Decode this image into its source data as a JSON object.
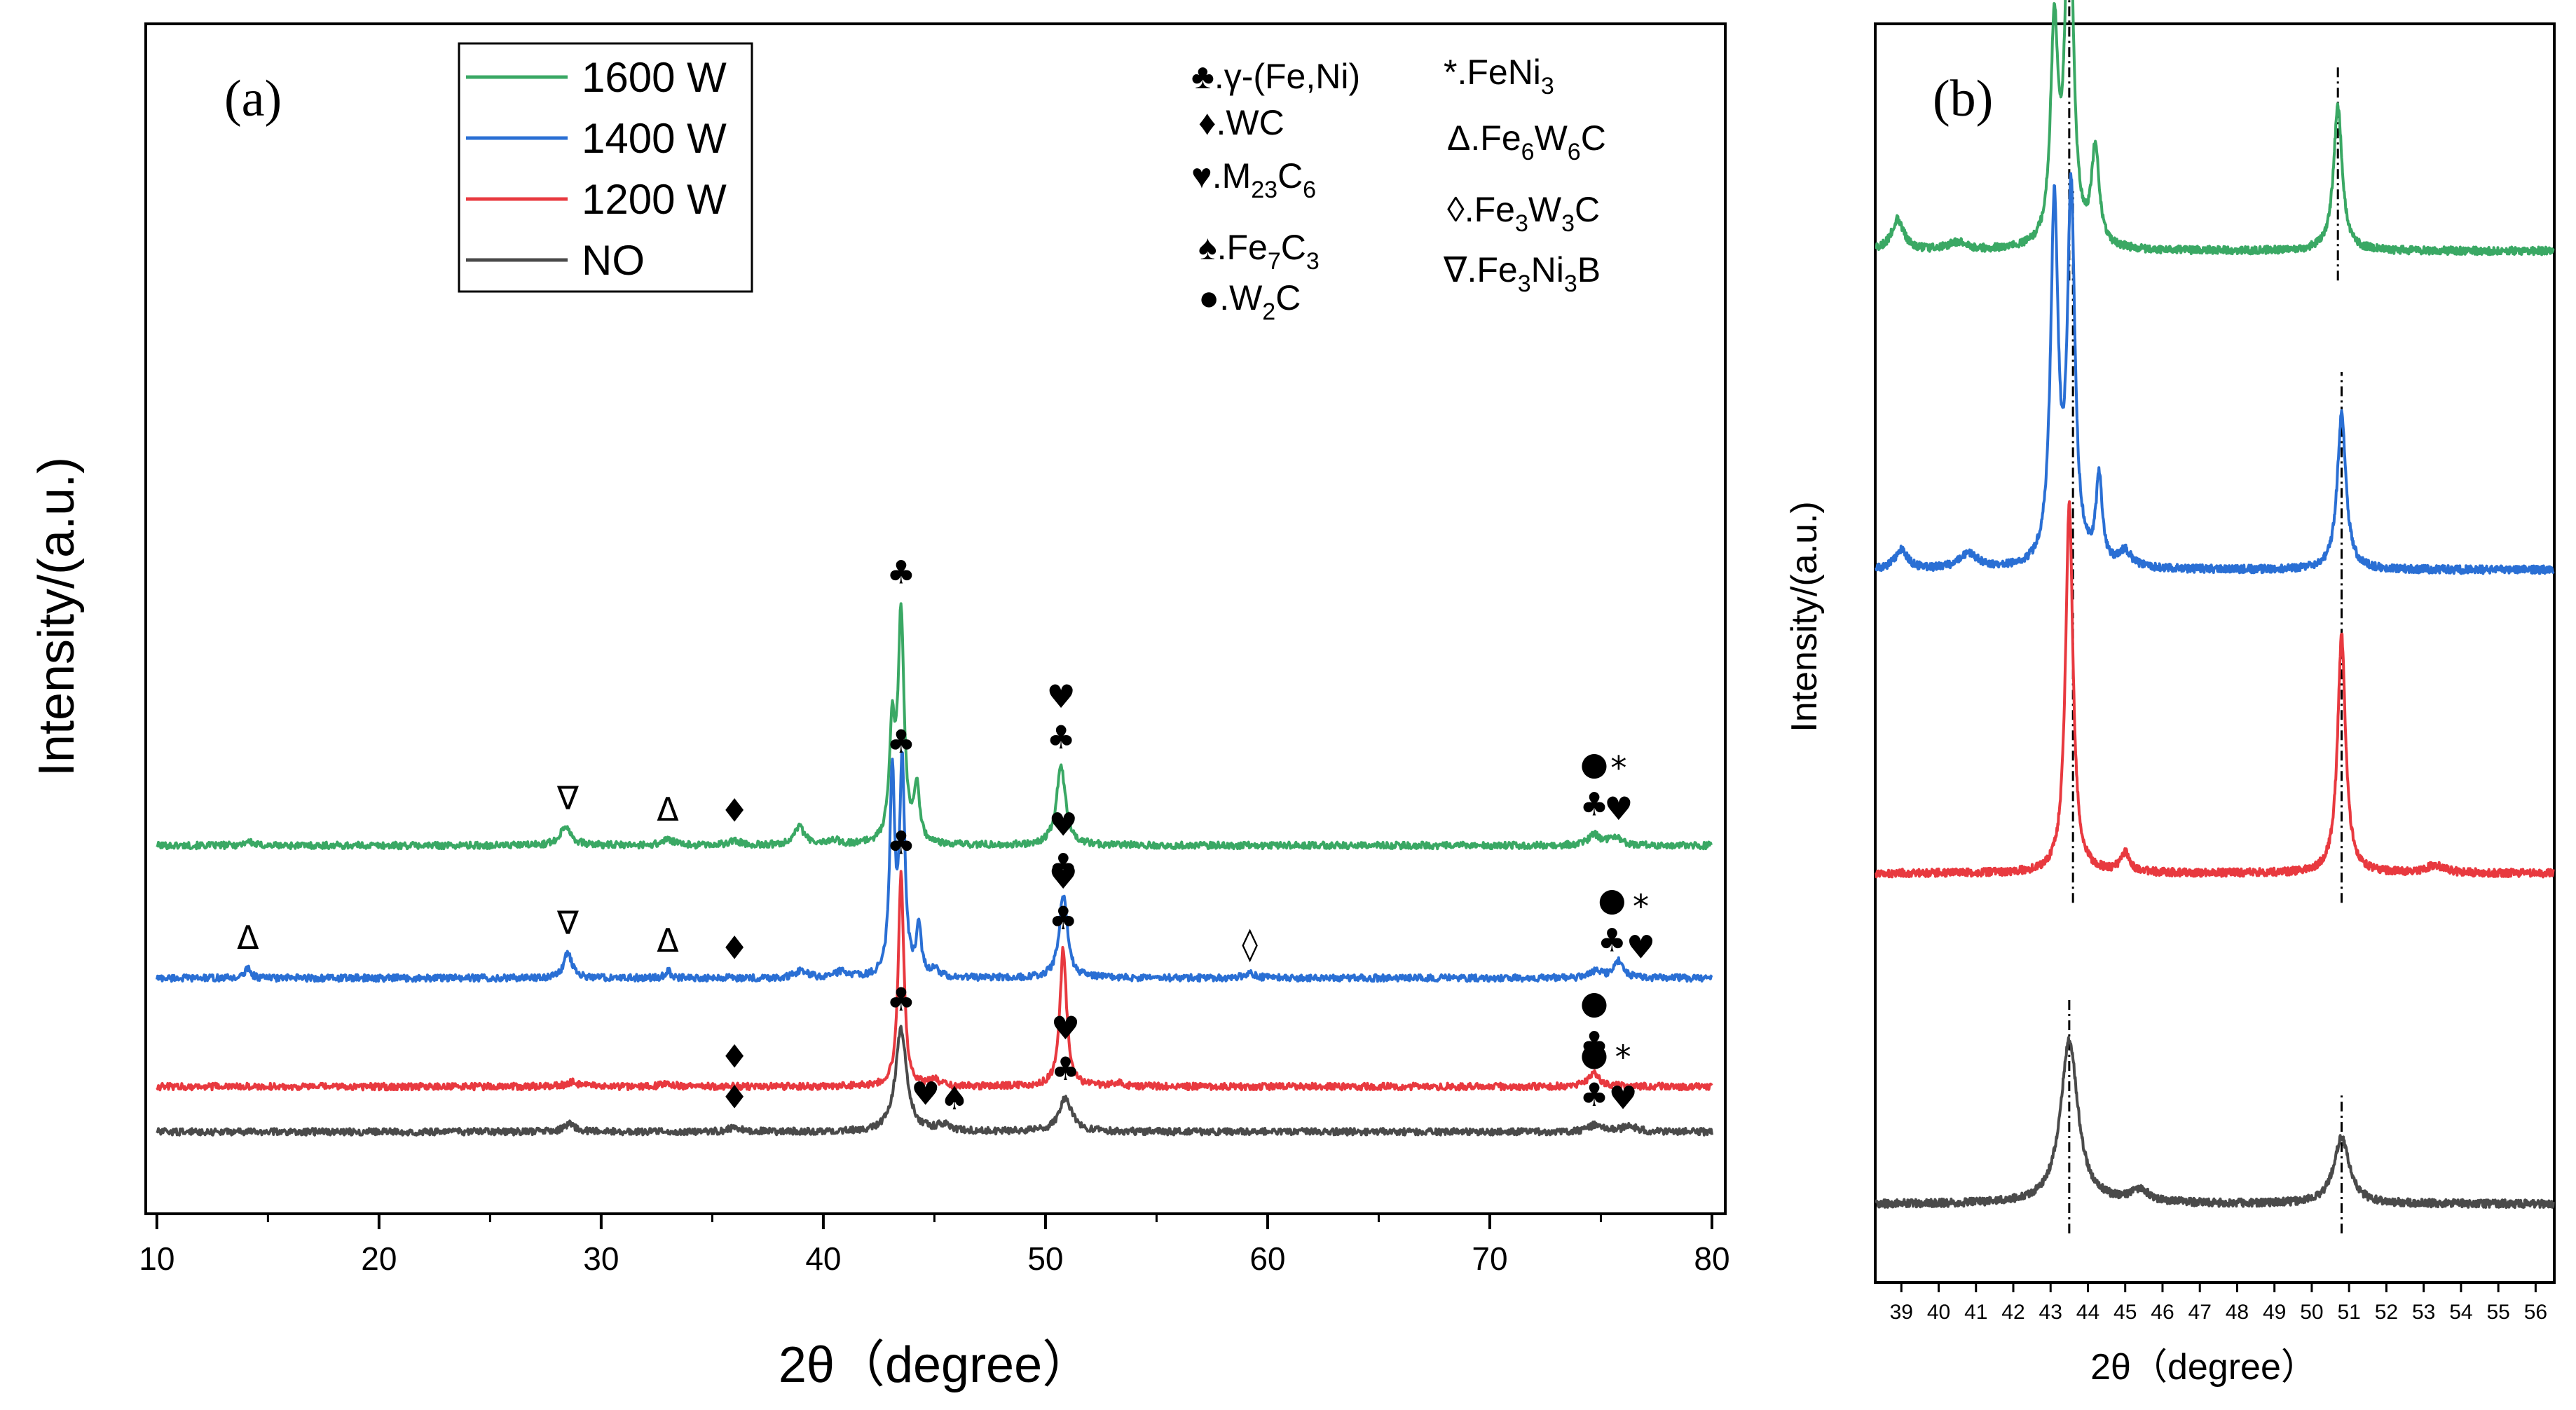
{
  "chart_data": [
    {
      "panel": "(a)",
      "type": "line",
      "xlabel": "2θ（degree）",
      "ylabel": "Intensity/(a.u.)",
      "xlim": [
        9.5,
        80.6
      ],
      "xticks": [
        10,
        20,
        30,
        40,
        50,
        60,
        70,
        80
      ],
      "legend": {
        "placement": "top-left",
        "entries": [
          {
            "label": "1600 W",
            "color": "#3aa864"
          },
          {
            "label": "1400 W",
            "color": "#2a6fd4"
          },
          {
            "label": "1200 W",
            "color": "#e8393f"
          },
          {
            "label": "NO",
            "color": "#4a4a4a"
          }
        ]
      },
      "phase_legend": [
        {
          "symbol": "♣",
          "prefix": ".γ-(Fe,Ni)",
          "parts": []
        },
        {
          "symbol": "♦",
          "prefix": ".WC",
          "parts": []
        },
        {
          "symbol": "♥",
          "prefix": ".M",
          "parts": [
            [
              "23",
              "C"
            ],
            [
              "6",
              ""
            ]
          ]
        },
        {
          "symbol": "♠",
          "prefix": ".Fe",
          "parts": [
            [
              "7",
              "C"
            ],
            [
              "3",
              ""
            ]
          ]
        },
        {
          "symbol": "●",
          "prefix": ".W",
          "parts": [
            [
              "2",
              "C"
            ]
          ]
        },
        {
          "symbol": "*",
          "prefix": ".FeNi",
          "parts": [
            [
              "3",
              ""
            ]
          ]
        },
        {
          "symbol": "Δ",
          "prefix": ".Fe",
          "parts": [
            [
              "6",
              "W"
            ],
            [
              "6",
              "C"
            ]
          ]
        },
        {
          "symbol": "◊",
          "prefix": ".Fe",
          "parts": [
            [
              "3",
              "W"
            ],
            [
              "3",
              "C"
            ]
          ]
        },
        {
          "symbol": "∇",
          "prefix": ".Fe",
          "parts": [
            [
              "3",
              "Ni"
            ],
            [
              "3",
              "B"
            ]
          ]
        }
      ],
      "series": [
        {
          "name": "1600 W",
          "color": "#3aa864",
          "baseline": 1.9,
          "peaks": [
            [
              14.1,
              0.03,
              0.2
            ],
            [
              28.4,
              0.13,
              0.3
            ],
            [
              33.0,
              0.04,
              0.3
            ],
            [
              36.0,
              0.03,
              0.3
            ],
            [
              38.9,
              0.12,
              0.3
            ],
            [
              40.5,
              0.03,
              0.3
            ],
            [
              43.1,
              0.72,
              0.16
            ],
            [
              43.5,
              1.5,
              0.16
            ],
            [
              44.2,
              0.36,
              0.15
            ],
            [
              50.7,
              0.52,
              0.25
            ],
            [
              74.7,
              0.07,
              0.3
            ],
            [
              75.6,
              0.06,
              0.3
            ]
          ]
        },
        {
          "name": "1400 W",
          "color": "#2a6fd4",
          "baseline": 1.02,
          "peaks": [
            [
              14.1,
              0.07,
              0.15
            ],
            [
              28.5,
              0.17,
              0.22
            ],
            [
              33.0,
              0.05,
              0.15
            ],
            [
              39.0,
              0.05,
              0.3
            ],
            [
              40.8,
              0.04,
              0.3
            ],
            [
              43.1,
              1.35,
              0.13
            ],
            [
              43.55,
              1.39,
              0.14
            ],
            [
              44.3,
              0.32,
              0.13
            ],
            [
              45.0,
              0.05,
              0.2
            ],
            [
              50.8,
              0.55,
              0.22
            ],
            [
              59.2,
              0.03,
              0.3
            ],
            [
              74.8,
              0.05,
              0.3
            ],
            [
              75.8,
              0.11,
              0.25
            ]
          ]
        },
        {
          "name": "1200 W",
          "color": "#e8393f",
          "baseline": 0.3,
          "peaks": [
            [
              28.7,
              0.03,
              0.3
            ],
            [
              33.0,
              0.02,
              0.3
            ],
            [
              43.5,
              1.42,
              0.15
            ],
            [
              45.0,
              0.05,
              0.2
            ],
            [
              50.8,
              0.92,
              0.18
            ],
            [
              53.3,
              0.02,
              0.3
            ],
            [
              74.7,
              0.09,
              0.3
            ]
          ]
        },
        {
          "name": "NO",
          "color": "#4a4a4a",
          "baseline": 0.0,
          "peaks": [
            [
              28.6,
              0.05,
              0.3
            ],
            [
              36.0,
              0.03,
              0.3
            ],
            [
              43.5,
              0.68,
              0.3
            ],
            [
              45.4,
              0.04,
              0.35
            ],
            [
              50.9,
              0.22,
              0.35
            ],
            [
              74.8,
              0.05,
              0.35
            ],
            [
              76.3,
              0.04,
              0.35
            ]
          ]
        }
      ],
      "annotations": [
        {
          "series": "1600 W",
          "x": 28.5,
          "symbols": [
            "∇"
          ]
        },
        {
          "series": "1600 W",
          "x": 33.0,
          "symbols": [
            "Δ"
          ]
        },
        {
          "series": "1600 W",
          "x": 36.0,
          "symbols": [
            "♦"
          ]
        },
        {
          "series": "1600 W",
          "x": 43.5,
          "symbols": [
            "♣"
          ]
        },
        {
          "series": "1600 W",
          "x": 50.7,
          "symbols": [
            "♣",
            "♥"
          ]
        },
        {
          "series": "1600 W",
          "x": 74.7,
          "symbols": [
            "♣",
            "●"
          ]
        },
        {
          "series": "1600 W",
          "x": 75.8,
          "symbols": [
            "♥",
            "*"
          ]
        },
        {
          "series": "1400 W",
          "x": 14.1,
          "symbols": [
            "Δ"
          ]
        },
        {
          "series": "1400 W",
          "x": 28.5,
          "symbols": [
            "∇"
          ]
        },
        {
          "series": "1400 W",
          "x": 33.0,
          "symbols": [
            "Δ"
          ]
        },
        {
          "series": "1400 W",
          "x": 36.0,
          "symbols": [
            "♦"
          ]
        },
        {
          "series": "1400 W",
          "x": 43.5,
          "symbols": [
            "♣"
          ]
        },
        {
          "series": "1400 W",
          "x": 50.8,
          "symbols": [
            "♣",
            "♥"
          ]
        },
        {
          "series": "1400 W",
          "x": 59.2,
          "symbols": [
            "◊"
          ]
        },
        {
          "series": "1400 W",
          "x": 75.5,
          "symbols": [
            "♣",
            "●"
          ]
        },
        {
          "series": "1400 W",
          "x": 76.8,
          "symbols": [
            "♥",
            "*"
          ]
        },
        {
          "series": "1200 W",
          "x": 36.0,
          "symbols": [
            "♦"
          ]
        },
        {
          "series": "1200 W",
          "x": 43.5,
          "symbols": [
            "♣"
          ]
        },
        {
          "series": "1200 W",
          "x": 50.8,
          "symbols": [
            "♣",
            "♥"
          ]
        },
        {
          "series": "1200 W",
          "x": 74.7,
          "symbols": [
            "♣",
            "●"
          ]
        },
        {
          "series": "NO",
          "x": 36.0,
          "symbols": [
            "♦"
          ]
        },
        {
          "series": "NO",
          "x": 43.5,
          "symbols": [
            "♣"
          ]
        },
        {
          "series": "NO",
          "x": 44.6,
          "symbols": [
            "♥"
          ]
        },
        {
          "series": "NO",
          "x": 45.9,
          "symbols": [
            "♠"
          ]
        },
        {
          "series": "NO",
          "x": 50.9,
          "symbols": [
            "♣",
            "♥"
          ]
        },
        {
          "series": "NO",
          "x": 74.7,
          "symbols": [
            "♣",
            "●"
          ]
        },
        {
          "series": "NO",
          "x": 76.0,
          "symbols": [
            "♥",
            "*"
          ]
        }
      ]
    },
    {
      "panel": "(b)",
      "type": "line",
      "xlabel": "2θ（degree）",
      "ylabel": "Intensity/(a.u.)",
      "xlim": [
        38.3,
        56.5
      ],
      "xticks": [
        39,
        40,
        41,
        42,
        43,
        44,
        45,
        46,
        47,
        48,
        49,
        50,
        51,
        52,
        53,
        54,
        55,
        56
      ],
      "series": [
        {
          "name": "1600 W",
          "color": "#3aa864",
          "baseline": 2.45,
          "refs": [
            43.5,
            50.7
          ],
          "peaks": [
            [
              38.9,
              0.08,
              0.2
            ],
            [
              40.5,
              0.02,
              0.3
            ],
            [
              43.1,
              0.55,
              0.12
            ],
            [
              43.5,
              1.0,
              0.12
            ],
            [
              44.2,
              0.25,
              0.12
            ],
            [
              50.7,
              0.37,
              0.14
            ]
          ]
        },
        {
          "name": "1400 W",
          "color": "#2a6fd4",
          "baseline": 1.63,
          "refs": [
            43.6,
            50.8
          ],
          "peaks": [
            [
              39.0,
              0.05,
              0.2
            ],
            [
              40.8,
              0.04,
              0.3
            ],
            [
              43.1,
              0.92,
              0.12
            ],
            [
              43.55,
              0.95,
              0.12
            ],
            [
              44.3,
              0.22,
              0.1
            ],
            [
              45.0,
              0.04,
              0.2
            ],
            [
              50.8,
              0.4,
              0.14
            ]
          ]
        },
        {
          "name": "1200 W",
          "color": "#e8393f",
          "baseline": 0.85,
          "refs": [
            43.6,
            50.8
          ],
          "peaks": [
            [
              43.5,
              0.95,
              0.12
            ],
            [
              45.0,
              0.05,
              0.15
            ],
            [
              50.8,
              0.61,
              0.13
            ],
            [
              53.3,
              0.02,
              0.3
            ]
          ]
        },
        {
          "name": "NO",
          "color": "#4a4a4a",
          "baseline": 0.0,
          "refs": [
            43.5,
            50.8
          ],
          "peaks": [
            [
              43.5,
              0.42,
              0.28
            ],
            [
              45.4,
              0.03,
              0.3
            ],
            [
              50.8,
              0.17,
              0.25
            ]
          ]
        }
      ]
    }
  ]
}
